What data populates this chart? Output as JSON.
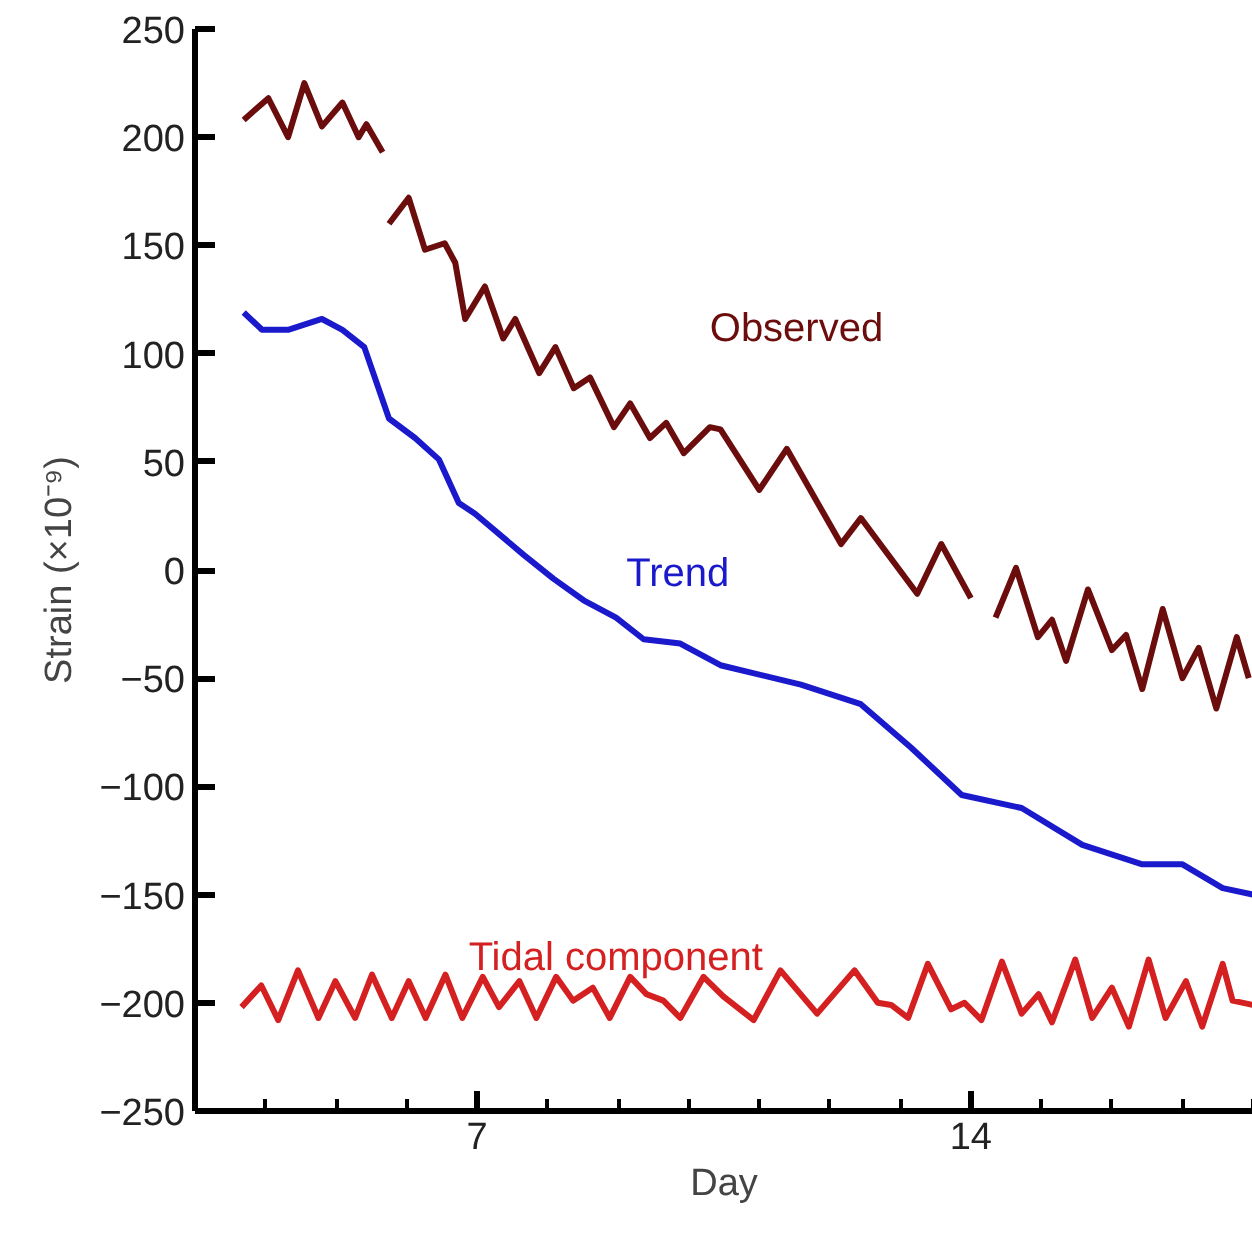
{
  "chart_data": {
    "type": "line",
    "xlabel": "Day",
    "ylabel": "Strain (×10⁻⁹)",
    "xlim": [
      3,
      18
    ],
    "xticks": [
      7,
      14
    ],
    "ylim": [
      -250,
      250
    ],
    "yticks": [
      -250,
      -200,
      -150,
      -100,
      -50,
      0,
      50,
      100,
      150,
      200,
      250
    ],
    "grid": false,
    "legend": false,
    "line_style": "solid",
    "series": [
      {
        "name": "Observed",
        "color": "#6b0d0d",
        "x": [
          3.69,
          4.04,
          4.32,
          4.55,
          4.8,
          5.09,
          5.32,
          5.43,
          5.66,
          5.7,
          5.75,
          6.03,
          6.26,
          6.54,
          6.69,
          6.83,
          7.11,
          7.37,
          7.54,
          7.88,
          8.11,
          8.37,
          8.6,
          8.94,
          9.17,
          9.45,
          9.68,
          9.93,
          10.3,
          10.45,
          11.0,
          11.39,
          12.16,
          12.44,
          13.24,
          13.58,
          14.0,
          14.2,
          14.35,
          14.64,
          14.95,
          15.15,
          15.35,
          15.66,
          16.0,
          16.2,
          16.43,
          16.72,
          17.0,
          17.23,
          17.48,
          17.77,
          17.94
        ],
        "values": [
          208,
          218,
          200,
          225,
          205,
          216,
          200,
          206,
          193,
          null,
          160,
          172,
          148,
          151,
          142,
          116,
          131,
          107,
          116,
          91,
          103,
          84,
          89,
          66,
          77,
          61,
          68,
          54,
          66,
          65,
          37,
          56,
          12,
          24,
          -11,
          12,
          -13,
          null,
          -22,
          1,
          -31,
          -23,
          -42,
          -9,
          -37,
          -30,
          -55,
          -18,
          -50,
          -36,
          -64,
          -31,
          -50
        ]
      },
      {
        "name": "Trend",
        "color": "#1a1acc",
        "x": [
          3.69,
          3.95,
          4.32,
          4.8,
          5.09,
          5.4,
          5.75,
          6.12,
          6.46,
          6.74,
          6.97,
          7.66,
          8.08,
          8.51,
          8.97,
          9.36,
          9.88,
          10.45,
          11.59,
          12.44,
          13.15,
          13.87,
          14.72,
          15.58,
          16.43,
          17.0,
          17.57,
          18.0
        ],
        "values": [
          119,
          111,
          111,
          116,
          111,
          103,
          70,
          61,
          51,
          31,
          26,
          7,
          -4,
          -14,
          -22,
          -32,
          -34,
          -44,
          -53,
          -62,
          -82,
          -104,
          -110,
          -127,
          -136,
          -136,
          -147,
          -150
        ]
      },
      {
        "name": "Tidal component",
        "color": "#d42020",
        "x": [
          3.66,
          3.94,
          4.18,
          4.46,
          4.75,
          4.99,
          5.27,
          5.51,
          5.79,
          6.03,
          6.27,
          6.55,
          6.79,
          7.08,
          7.31,
          7.6,
          7.84,
          8.12,
          8.36,
          8.64,
          8.88,
          9.17,
          9.4,
          9.64,
          9.88,
          10.21,
          10.49,
          10.92,
          11.3,
          11.82,
          12.35,
          12.68,
          12.87,
          13.11,
          13.39,
          13.72,
          13.91,
          14.15,
          14.44,
          14.72,
          14.96,
          15.15,
          15.48,
          15.72,
          16.0,
          16.24,
          16.52,
          16.76,
          17.05,
          17.28,
          17.57,
          17.71,
          18.0
        ],
        "values": [
          -202,
          -192,
          -208,
          -185,
          -207,
          -190,
          -207,
          -187,
          -207,
          -190,
          -207,
          -187,
          -207,
          -188,
          -202,
          -190,
          -207,
          -188,
          -199,
          -193,
          -207,
          -188,
          -196,
          -199,
          -207,
          -188,
          -197,
          -208,
          -185,
          -205,
          -185,
          -200,
          -201,
          -207,
          -182,
          -203,
          -200,
          -208,
          -181,
          -205,
          -196,
          -209,
          -180,
          -207,
          -193,
          -211,
          -180,
          -207,
          -190,
          -211,
          -182,
          -199,
          -201
        ]
      }
    ]
  }
}
